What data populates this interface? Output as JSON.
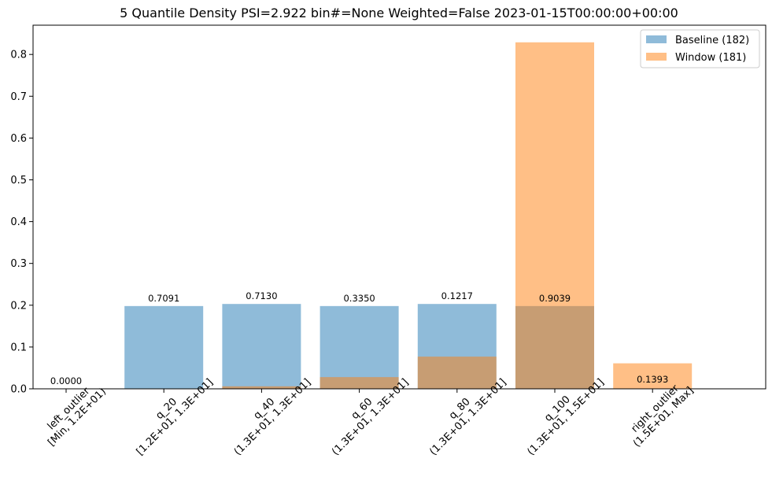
{
  "chart_data": {
    "type": "bar",
    "title": "5 Quantile Density PSI=2.922 bin#=None Weighted=False 2023-01-15T00:00:00+00:00",
    "xlabel": "",
    "ylabel": "",
    "ylim": [
      0,
      0.87
    ],
    "yticks": [
      "0.0",
      "0.1",
      "0.2",
      "0.3",
      "0.4",
      "0.5",
      "0.6",
      "0.7",
      "0.8"
    ],
    "categories": [
      [
        "left_outlier",
        "[Min, 1.2E+01)"
      ],
      [
        "q_20",
        "[1.2E+01, 1.3E+01]"
      ],
      [
        "q_40",
        "(1.3E+01, 1.3E+01]"
      ],
      [
        "q_60",
        "(1.3E+01, 1.3E+01]"
      ],
      [
        "q_80",
        "(1.3E+01, 1.3E+01]"
      ],
      [
        "q_100",
        "(1.3E+01, 1.5E+01]"
      ],
      [
        "right_outlier",
        "(1.5E+01, Max]"
      ]
    ],
    "series": [
      {
        "name": "Baseline (182)",
        "color": "#1f77b4",
        "opacity": 0.5,
        "values": [
          0.0,
          0.198,
          0.203,
          0.198,
          0.203,
          0.198,
          0.0
        ]
      },
      {
        "name": "Window (181)",
        "color": "#ff7f0e",
        "opacity": 0.5,
        "values": [
          0.0,
          0.0,
          0.006,
          0.028,
          0.077,
          0.829,
          0.061
        ]
      }
    ],
    "bar_labels": [
      "0.0000",
      "0.7091",
      "0.7130",
      "0.3350",
      "0.1217",
      "0.9039",
      "0.1393"
    ],
    "legend_placement": "top-right",
    "grid": false
  }
}
